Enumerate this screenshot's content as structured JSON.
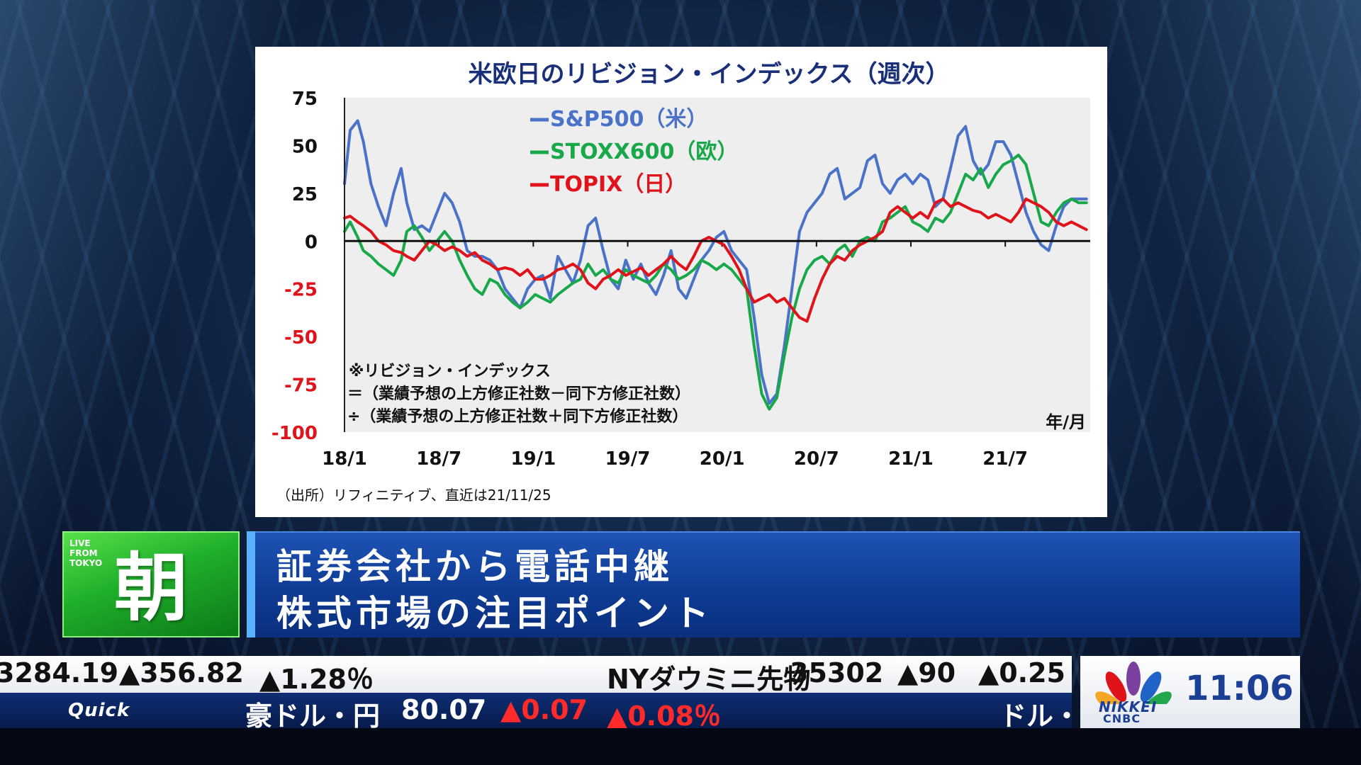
{
  "chart_data": {
    "type": "line",
    "title": "米欧日のリビジョン・インデックス（週次）",
    "xlabel": "年/月",
    "ylabel": "",
    "ylim": [
      -100,
      75
    ],
    "yticks": [
      75,
      50,
      25,
      0,
      -25,
      -50,
      -75,
      -100
    ],
    "xticks": [
      "18/1",
      "18/7",
      "19/1",
      "19/7",
      "20/1",
      "20/7",
      "21/1",
      "21/7"
    ],
    "x_range_years": [
      2018.0,
      2021.95
    ],
    "grid": false,
    "legend_position": "top-left",
    "colors": {
      "positive_tick": "#111111",
      "negative_tick": "#e0121a",
      "title": "#1a2f7a"
    },
    "series": [
      {
        "name": "S&P500（米）",
        "color": "#4a72c8",
        "x": [
          2018.0,
          2018.03,
          2018.07,
          2018.1,
          2018.14,
          2018.18,
          2018.22,
          2018.26,
          2018.3,
          2018.33,
          2018.37,
          2018.41,
          2018.45,
          2018.49,
          2018.53,
          2018.57,
          2018.61,
          2018.65,
          2018.69,
          2018.73,
          2018.77,
          2018.81,
          2018.85,
          2018.89,
          2018.93,
          2018.97,
          2019.01,
          2019.05,
          2019.09,
          2019.13,
          2019.17,
          2019.21,
          2019.25,
          2019.29,
          2019.33,
          2019.37,
          2019.41,
          2019.45,
          2019.49,
          2019.53,
          2019.57,
          2019.61,
          2019.65,
          2019.69,
          2019.73,
          2019.77,
          2019.81,
          2019.85,
          2019.89,
          2019.93,
          2019.97,
          2020.01,
          2020.05,
          2020.09,
          2020.13,
          2020.17,
          2020.21,
          2020.25,
          2020.29,
          2020.33,
          2020.37,
          2020.41,
          2020.45,
          2020.49,
          2020.53,
          2020.57,
          2020.61,
          2020.65,
          2020.69,
          2020.73,
          2020.77,
          2020.81,
          2020.85,
          2020.89,
          2020.93,
          2020.97,
          2021.01,
          2021.05,
          2021.09,
          2021.13,
          2021.17,
          2021.21,
          2021.25,
          2021.29,
          2021.33,
          2021.37,
          2021.41,
          2021.45,
          2021.49,
          2021.53,
          2021.57,
          2021.61,
          2021.65,
          2021.69,
          2021.73,
          2021.77,
          2021.81,
          2021.85,
          2021.89,
          2021.93
        ],
        "values": [
          30,
          58,
          63,
          52,
          30,
          18,
          8,
          25,
          38,
          20,
          6,
          8,
          5,
          15,
          25,
          20,
          10,
          -5,
          -8,
          -8,
          -10,
          -15,
          -25,
          -30,
          -35,
          -25,
          -20,
          -18,
          -30,
          -8,
          -15,
          -22,
          -10,
          8,
          12,
          -5,
          -20,
          -25,
          -10,
          -20,
          -12,
          -22,
          -28,
          -18,
          -5,
          -25,
          -30,
          -20,
          -10,
          -5,
          2,
          5,
          -5,
          -10,
          -15,
          -40,
          -70,
          -85,
          -80,
          -55,
          -25,
          5,
          15,
          20,
          25,
          35,
          38,
          22,
          25,
          28,
          42,
          45,
          30,
          25,
          32,
          35,
          30,
          35,
          32,
          18,
          22,
          38,
          55,
          60,
          42,
          35,
          40,
          52,
          52,
          45,
          30,
          15,
          5,
          -2,
          -5,
          8,
          18,
          22,
          22,
          22
        ]
      },
      {
        "name": "STOXX600（欧）",
        "color": "#18a84a",
        "x": [
          2018.0,
          2018.03,
          2018.07,
          2018.1,
          2018.14,
          2018.18,
          2018.22,
          2018.26,
          2018.3,
          2018.33,
          2018.37,
          2018.41,
          2018.45,
          2018.49,
          2018.53,
          2018.57,
          2018.61,
          2018.65,
          2018.69,
          2018.73,
          2018.77,
          2018.81,
          2018.85,
          2018.89,
          2018.93,
          2018.97,
          2019.01,
          2019.05,
          2019.09,
          2019.13,
          2019.17,
          2019.21,
          2019.25,
          2019.29,
          2019.33,
          2019.37,
          2019.41,
          2019.45,
          2019.49,
          2019.53,
          2019.57,
          2019.61,
          2019.65,
          2019.69,
          2019.73,
          2019.77,
          2019.81,
          2019.85,
          2019.89,
          2019.93,
          2019.97,
          2020.01,
          2020.05,
          2020.09,
          2020.13,
          2020.17,
          2020.21,
          2020.25,
          2020.29,
          2020.33,
          2020.37,
          2020.41,
          2020.45,
          2020.49,
          2020.53,
          2020.57,
          2020.61,
          2020.65,
          2020.69,
          2020.73,
          2020.77,
          2020.81,
          2020.85,
          2020.89,
          2020.93,
          2020.97,
          2021.01,
          2021.05,
          2021.09,
          2021.13,
          2021.17,
          2021.21,
          2021.25,
          2021.29,
          2021.33,
          2021.37,
          2021.41,
          2021.45,
          2021.49,
          2021.53,
          2021.57,
          2021.61,
          2021.65,
          2021.69,
          2021.73,
          2021.77,
          2021.81,
          2021.85,
          2021.89,
          2021.93
        ],
        "values": [
          5,
          10,
          2,
          -5,
          -8,
          -12,
          -15,
          -18,
          -10,
          5,
          8,
          2,
          -5,
          0,
          5,
          0,
          -10,
          -18,
          -25,
          -28,
          -20,
          -22,
          -28,
          -32,
          -35,
          -32,
          -28,
          -30,
          -32,
          -28,
          -25,
          -22,
          -20,
          -12,
          -18,
          -15,
          -20,
          -22,
          -15,
          -18,
          -20,
          -22,
          -18,
          -12,
          -15,
          -20,
          -18,
          -15,
          -10,
          -12,
          -15,
          -12,
          -15,
          -20,
          -25,
          -55,
          -80,
          -88,
          -82,
          -60,
          -40,
          -25,
          -15,
          -10,
          -8,
          -12,
          -5,
          -2,
          -8,
          0,
          2,
          0,
          10,
          12,
          15,
          18,
          10,
          8,
          5,
          12,
          10,
          15,
          25,
          35,
          32,
          38,
          28,
          35,
          40,
          42,
          45,
          40,
          25,
          10,
          8,
          15,
          20,
          22,
          20,
          20
        ]
      },
      {
        "name": "TOPIX（日）",
        "color": "#e0121a",
        "x": [
          2018.0,
          2018.03,
          2018.07,
          2018.1,
          2018.14,
          2018.18,
          2018.22,
          2018.26,
          2018.3,
          2018.33,
          2018.37,
          2018.41,
          2018.45,
          2018.49,
          2018.53,
          2018.57,
          2018.61,
          2018.65,
          2018.69,
          2018.73,
          2018.77,
          2018.81,
          2018.85,
          2018.89,
          2018.93,
          2018.97,
          2019.01,
          2019.05,
          2019.09,
          2019.13,
          2019.17,
          2019.21,
          2019.25,
          2019.29,
          2019.33,
          2019.37,
          2019.41,
          2019.45,
          2019.49,
          2019.53,
          2019.57,
          2019.61,
          2019.65,
          2019.69,
          2019.73,
          2019.77,
          2019.81,
          2019.85,
          2019.89,
          2019.93,
          2019.97,
          2020.01,
          2020.05,
          2020.09,
          2020.13,
          2020.17,
          2020.21,
          2020.25,
          2020.29,
          2020.33,
          2020.37,
          2020.41,
          2020.45,
          2020.49,
          2020.53,
          2020.57,
          2020.61,
          2020.65,
          2020.69,
          2020.73,
          2020.77,
          2020.81,
          2020.85,
          2020.89,
          2020.93,
          2020.97,
          2021.01,
          2021.05,
          2021.09,
          2021.13,
          2021.17,
          2021.21,
          2021.25,
          2021.29,
          2021.33,
          2021.37,
          2021.41,
          2021.45,
          2021.49,
          2021.53,
          2021.57,
          2021.61,
          2021.65,
          2021.69,
          2021.73,
          2021.77,
          2021.81,
          2021.85,
          2021.89,
          2021.93
        ],
        "values": [
          12,
          13,
          10,
          8,
          5,
          0,
          -2,
          -5,
          -6,
          -8,
          -10,
          -5,
          0,
          -2,
          -5,
          -3,
          -5,
          -8,
          -6,
          -10,
          -12,
          -15,
          -14,
          -15,
          -18,
          -15,
          -20,
          -20,
          -18,
          -15,
          -14,
          -12,
          -15,
          -22,
          -25,
          -20,
          -18,
          -15,
          -18,
          -16,
          -14,
          -18,
          -15,
          -12,
          -8,
          -12,
          -15,
          -8,
          0,
          2,
          0,
          -2,
          -8,
          -15,
          -25,
          -32,
          -30,
          -28,
          -32,
          -30,
          -35,
          -40,
          -42,
          -30,
          -20,
          -12,
          -8,
          -10,
          -5,
          -2,
          0,
          2,
          5,
          15,
          18,
          15,
          12,
          15,
          12,
          20,
          22,
          18,
          20,
          18,
          16,
          15,
          12,
          14,
          12,
          10,
          15,
          22,
          20,
          18,
          15,
          10,
          8,
          10,
          8,
          6
        ]
      }
    ],
    "annotation": {
      "line1": "※リビジョン・インデックス",
      "line2": "＝（業績予想の上方修正社数－同下方修正社数）",
      "line3": "÷（業績予想の上方修正社数＋同下方修正社数）"
    },
    "source": "（出所）リフィニティブ、直近は21/11/25"
  },
  "lower_third": {
    "corner_label": "LIVE\nFROM\nTOKYO",
    "program": "朝",
    "line1": "証券会社から電話中継",
    "line2": "株式市場の注目ポイント"
  },
  "ticker_top": {
    "value1": "3284.19",
    "change1": "▲356.82",
    "pct1": "▲1.28％",
    "label2": "NYダウミニ先物",
    "value2": "35302",
    "change2": "▲90",
    "pct2": "▲0.25"
  },
  "ticker_bottom": {
    "brand": "Quick",
    "label": "豪ドル・円",
    "value": "80.07",
    "change": "▲0.07",
    "pct": "▲0.08％",
    "next_label": "ドル・"
  },
  "clock": {
    "time": "11:06",
    "logo_line1": "NIKKEI",
    "logo_line2": "CNBC"
  }
}
